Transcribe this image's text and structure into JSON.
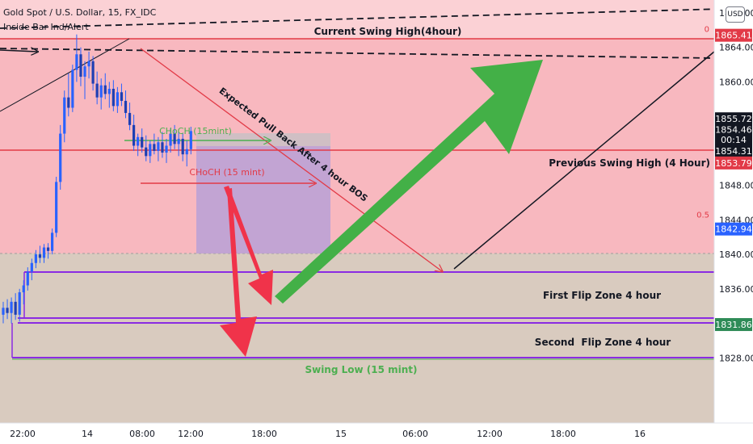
{
  "header": {
    "symbol_line": "Gold Spot / U.S. Dollar, 15, FX_IDC",
    "indicator_line": "Inside Bar Ind/Alert",
    "currency_button": "USD"
  },
  "colors": {
    "premium_zone": "#f8b8bf",
    "premium_top": "#fbd1d5",
    "discount_zone": "#d9cbbf",
    "candle_up": "#2962ff",
    "candle_down": "#2962ff",
    "red_line": "#e23a47",
    "purple_line": "#8a2be2",
    "green_line": "#4caf50",
    "big_green_arrow": "#43b047",
    "big_red_arrow": "#f0334a",
    "box_fill": "#b9a0d6",
    "price_tag_dark": "#131722",
    "price_tag_red": "#e23a47",
    "price_tag_blue": "#2962ff",
    "price_tag_green": "#2e8b57"
  },
  "chart_data": {
    "type": "candlestick",
    "x_ticks": [
      "22:00",
      "14",
      "08:00",
      "12:00",
      "18:00",
      "15",
      "06:00",
      "12:00",
      "18:00",
      "16"
    ],
    "y_ticks": [
      1828.0,
      1832.0,
      1836.0,
      1840.0,
      1844.0,
      1848.0,
      1856.0,
      1860.0,
      1864.0,
      1868.0
    ],
    "y_tick_labels": [
      "1828.00",
      "",
      "1836.00",
      "1840.00",
      "1844.00",
      "1848.00",
      "",
      "1860.00",
      "1864.00",
      "1868.00"
    ],
    "ylim": [
      1824.0,
      1868.0
    ],
    "price_tags": [
      {
        "label": "1865.41",
        "value": 1865.41,
        "style": "red"
      },
      {
        "label": "1855.72",
        "value": 1855.72,
        "style": "dark"
      },
      {
        "label": "1854.46",
        "value": 1854.46,
        "style": "dark"
      },
      {
        "label": "00:14",
        "value": 1853.3,
        "style": "dark"
      },
      {
        "label": "1854.31",
        "value": 1852.0,
        "style": "dark"
      },
      {
        "label": "1853.79",
        "value": 1850.6,
        "style": "red"
      },
      {
        "label": "1842.94",
        "value": 1842.94,
        "style": "blue"
      },
      {
        "label": "1831.86",
        "value": 1831.86,
        "style": "green"
      }
    ],
    "fib_labels": [
      {
        "label": "0",
        "value": 1865.41
      },
      {
        "label": "0.5",
        "value": 1843.9
      }
    ],
    "levels": [
      {
        "name": "Current Swing High(4hour)",
        "value": 1865.41
      },
      {
        "name": "Previous Swing High (4 Hour)",
        "value": 1854.46
      },
      {
        "name": "First Flip Zone 4 hour",
        "value_top": 1841.4,
        "value_bottom": 1836.0
      },
      {
        "name": "Second  Flip Zone 4 hour",
        "value_top": 1835.3,
        "value_bottom": 1831.86
      },
      {
        "name": "Swing Low (15 mint)",
        "value": 1831.86
      }
    ],
    "annotations": {
      "current_swing_high": "Current Swing High(4hour)",
      "previous_swing_high": "Previous Swing High (4 Hour)",
      "first_flip_zone": "First Flip Zone 4 hour",
      "second_flip_zone": "Second  Flip Zone 4 hour",
      "swing_low": "Swing Low (15 mint)",
      "choch_green": "CHoCH (15mint)",
      "choch_red": "CHoCH (15 mint)",
      "pullback": "Expected Pull Back After 4 hour BOS"
    },
    "candles": [
      {
        "o": 1833.0,
        "h": 1834.5,
        "l": 1832.0,
        "c": 1833.8
      },
      {
        "o": 1833.8,
        "h": 1834.8,
        "l": 1832.5,
        "c": 1833.2
      },
      {
        "o": 1833.2,
        "h": 1835.0,
        "l": 1832.0,
        "c": 1834.5
      },
      {
        "o": 1834.5,
        "h": 1835.5,
        "l": 1832.4,
        "c": 1833.0
      },
      {
        "o": 1833.0,
        "h": 1836.0,
        "l": 1832.2,
        "c": 1835.6
      },
      {
        "o": 1835.6,
        "h": 1837.0,
        "l": 1834.2,
        "c": 1836.4
      },
      {
        "o": 1836.4,
        "h": 1838.5,
        "l": 1835.8,
        "c": 1838.0
      },
      {
        "o": 1838.0,
        "h": 1839.5,
        "l": 1837.0,
        "c": 1839.0
      },
      {
        "o": 1839.0,
        "h": 1840.5,
        "l": 1838.4,
        "c": 1840.0
      },
      {
        "o": 1840.0,
        "h": 1841.0,
        "l": 1839.0,
        "c": 1839.6
      },
      {
        "o": 1839.6,
        "h": 1841.2,
        "l": 1839.0,
        "c": 1840.8
      },
      {
        "o": 1840.8,
        "h": 1841.3,
        "l": 1839.5,
        "c": 1840.4
      },
      {
        "o": 1840.4,
        "h": 1843.0,
        "l": 1840.0,
        "c": 1842.5
      },
      {
        "o": 1842.5,
        "h": 1849.0,
        "l": 1842.0,
        "c": 1848.4
      },
      {
        "o": 1848.4,
        "h": 1855.0,
        "l": 1847.5,
        "c": 1854.0
      },
      {
        "o": 1854.0,
        "h": 1859.0,
        "l": 1853.0,
        "c": 1858.2
      },
      {
        "o": 1858.2,
        "h": 1861.0,
        "l": 1856.0,
        "c": 1857.0
      },
      {
        "o": 1857.0,
        "h": 1862.0,
        "l": 1856.5,
        "c": 1861.4
      },
      {
        "o": 1861.4,
        "h": 1865.5,
        "l": 1860.0,
        "c": 1863.2
      },
      {
        "o": 1863.2,
        "h": 1864.0,
        "l": 1859.5,
        "c": 1860.6
      },
      {
        "o": 1860.6,
        "h": 1862.4,
        "l": 1858.0,
        "c": 1861.8
      },
      {
        "o": 1861.8,
        "h": 1863.5,
        "l": 1860.4,
        "c": 1862.4
      },
      {
        "o": 1862.4,
        "h": 1863.0,
        "l": 1859.0,
        "c": 1859.8
      },
      {
        "o": 1859.8,
        "h": 1861.2,
        "l": 1857.4,
        "c": 1858.2
      },
      {
        "o": 1858.2,
        "h": 1860.4,
        "l": 1856.8,
        "c": 1859.6
      },
      {
        "o": 1859.6,
        "h": 1861.0,
        "l": 1858.0,
        "c": 1858.6
      },
      {
        "o": 1858.6,
        "h": 1860.0,
        "l": 1857.0,
        "c": 1859.2
      },
      {
        "o": 1859.2,
        "h": 1860.2,
        "l": 1856.6,
        "c": 1857.2
      },
      {
        "o": 1857.2,
        "h": 1859.4,
        "l": 1856.4,
        "c": 1858.8
      },
      {
        "o": 1858.8,
        "h": 1859.8,
        "l": 1857.2,
        "c": 1857.8
      },
      {
        "o": 1857.8,
        "h": 1859.0,
        "l": 1855.8,
        "c": 1856.4
      },
      {
        "o": 1856.4,
        "h": 1857.6,
        "l": 1854.4,
        "c": 1855.0
      },
      {
        "o": 1855.0,
        "h": 1856.2,
        "l": 1852.0,
        "c": 1852.6
      },
      {
        "o": 1852.6,
        "h": 1854.0,
        "l": 1851.4,
        "c": 1853.6
      },
      {
        "o": 1853.6,
        "h": 1854.6,
        "l": 1851.8,
        "c": 1852.4
      },
      {
        "o": 1852.4,
        "h": 1853.8,
        "l": 1850.8,
        "c": 1851.4
      },
      {
        "o": 1851.4,
        "h": 1853.2,
        "l": 1850.6,
        "c": 1852.8
      },
      {
        "o": 1852.8,
        "h": 1854.0,
        "l": 1851.6,
        "c": 1852.0
      },
      {
        "o": 1852.0,
        "h": 1853.6,
        "l": 1850.8,
        "c": 1853.0
      },
      {
        "o": 1853.0,
        "h": 1854.2,
        "l": 1851.2,
        "c": 1851.8
      },
      {
        "o": 1851.8,
        "h": 1853.4,
        "l": 1850.6,
        "c": 1852.6
      },
      {
        "o": 1852.6,
        "h": 1854.6,
        "l": 1851.8,
        "c": 1854.0
      },
      {
        "o": 1854.0,
        "h": 1855.0,
        "l": 1852.2,
        "c": 1852.8
      },
      {
        "o": 1852.8,
        "h": 1854.2,
        "l": 1851.4,
        "c": 1853.4
      },
      {
        "o": 1853.4,
        "h": 1854.0,
        "l": 1850.8,
        "c": 1851.6
      },
      {
        "o": 1851.6,
        "h": 1853.2,
        "l": 1850.2,
        "c": 1852.2
      },
      {
        "o": 1852.2,
        "h": 1854.8,
        "l": 1851.6,
        "c": 1854.3
      }
    ]
  }
}
